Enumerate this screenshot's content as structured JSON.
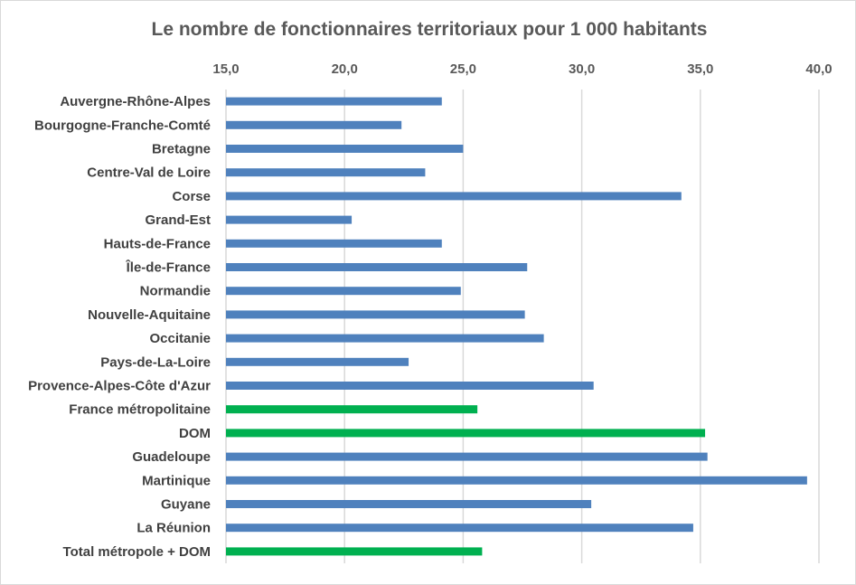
{
  "chart_data": {
    "type": "bar",
    "orientation": "horizontal",
    "title": "Le nombre de fonctionnaires territoriaux pour 1 000 habitants",
    "xlim": [
      15,
      40
    ],
    "x_ticks": [
      "15,0",
      "20,0",
      "25,0",
      "30,0",
      "35,0",
      "40,0"
    ],
    "x_tick_values": [
      15,
      20,
      25,
      30,
      35,
      40
    ],
    "x_axis_position": "top",
    "grid": true,
    "legend": "none",
    "categories": [
      "Auvergne-Rhône-Alpes",
      "Bourgogne-Franche-Comté",
      "Bretagne",
      "Centre-Val de Loire",
      "Corse",
      "Grand-Est",
      "Hauts-de-France",
      "Île-de-France",
      "Normandie",
      "Nouvelle-Aquitaine",
      "Occitanie",
      "Pays-de-La-Loire",
      "Provence-Alpes-Côte d'Azur",
      "France métropolitaine",
      "DOM",
      "Guadeloupe",
      "Martinique",
      "Guyane",
      "La Réunion",
      "Total métropole + DOM"
    ],
    "values": [
      24.1,
      22.4,
      25.0,
      23.4,
      34.2,
      20.3,
      24.1,
      27.7,
      24.9,
      27.6,
      28.4,
      22.7,
      30.5,
      25.6,
      35.2,
      35.3,
      39.5,
      30.4,
      34.7,
      25.8
    ],
    "colors": [
      "blue",
      "blue",
      "blue",
      "blue",
      "blue",
      "blue",
      "blue",
      "blue",
      "blue",
      "blue",
      "blue",
      "blue",
      "blue",
      "green",
      "green",
      "blue",
      "blue",
      "blue",
      "blue",
      "green"
    ],
    "palette": {
      "blue": "#4f81bd",
      "green": "#00b050"
    }
  }
}
